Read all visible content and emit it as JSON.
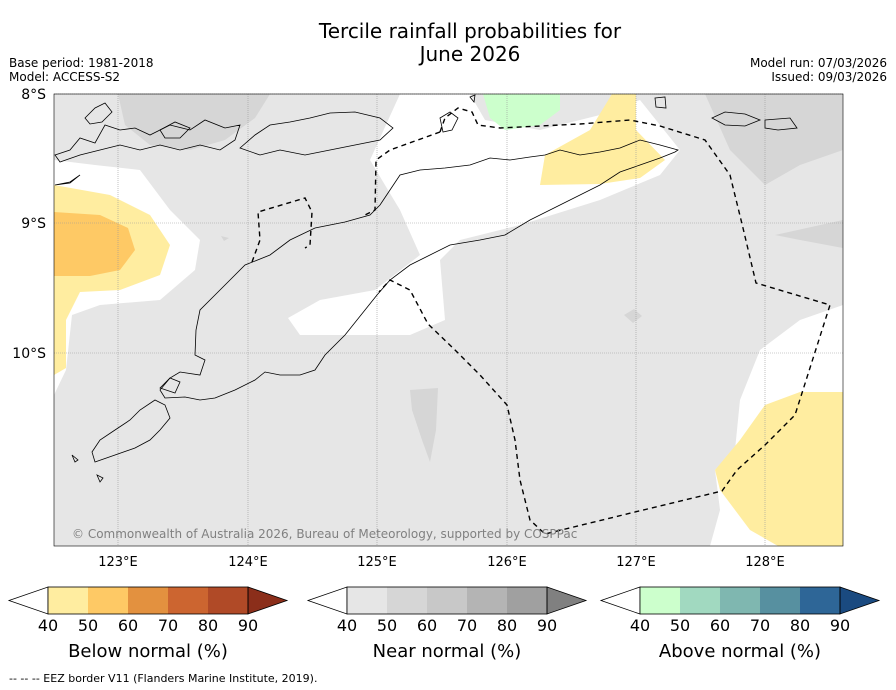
{
  "header": {
    "title_line1": "Tercile rainfall probabilities for",
    "title_line2": "June 2026",
    "base_period": "Base period: 1981-2018",
    "model": "Model: ACCESS-S2",
    "model_run": "Model run: 07/03/2026",
    "issued": "Issued: 09/03/2026"
  },
  "map": {
    "lat_labels": [
      "8°S",
      "9°S",
      "10°S"
    ],
    "lon_labels": [
      "123°E",
      "124°E",
      "125°E",
      "126°E",
      "127°E",
      "128°E"
    ],
    "copyright": "© Commonwealth of Australia 2026, Bureau of Meteorology, supported by COSPPac"
  },
  "colorbars": [
    {
      "label": "Below normal (%)",
      "ticks": [
        "40",
        "50",
        "60",
        "70",
        "80",
        "90"
      ],
      "colors": [
        "#ffffff",
        "#ffeda0",
        "#fec965",
        "#e3913f",
        "#cc6530",
        "#b04a27",
        "#8b2e1a"
      ]
    },
    {
      "label": "Near normal (%)",
      "ticks": [
        "40",
        "50",
        "60",
        "70",
        "80",
        "90"
      ],
      "colors": [
        "#ffffff",
        "#e6e6e6",
        "#d6d6d6",
        "#c8c8c8",
        "#b4b4b4",
        "#a0a0a0",
        "#808080"
      ]
    },
    {
      "label": "Above normal (%)",
      "ticks": [
        "40",
        "50",
        "60",
        "70",
        "80",
        "90"
      ],
      "colors": [
        "#ffffff",
        "#ccffcc",
        "#a1d9c0",
        "#7fb7b0",
        "#5790a0",
        "#2e6697",
        "#1a4a80"
      ]
    }
  ],
  "footer": {
    "note": "--  --  -- EEZ border V11 (Flanders Marine Institute, 2019)."
  }
}
